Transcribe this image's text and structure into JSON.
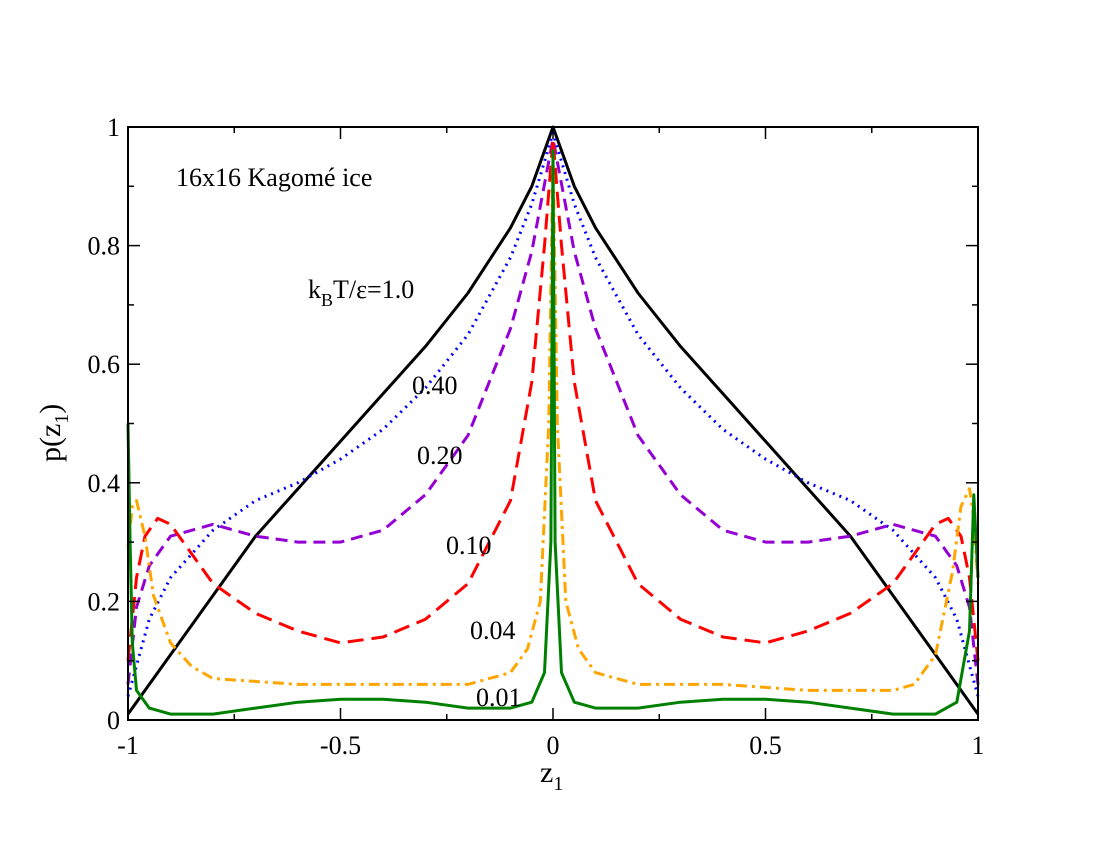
{
  "chart_data": {
    "type": "line",
    "title": "16x16 Kagomé ice",
    "xlabel": {
      "base": "z",
      "sub": "1"
    },
    "ylabel": {
      "base": "p(z",
      "sub": "1",
      "tail": ")"
    },
    "xlim": [
      -1,
      1
    ],
    "ylim": [
      0,
      1
    ],
    "xticks": [
      {
        "value": -1,
        "label": "-1"
      },
      {
        "value": -0.5,
        "label": "-0.5"
      },
      {
        "value": 0,
        "label": "0"
      },
      {
        "value": 0.5,
        "label": "0.5"
      },
      {
        "value": 1,
        "label": "1"
      }
    ],
    "yticks": [
      {
        "value": 0,
        "label": "0"
      },
      {
        "value": 0.2,
        "label": "0.2"
      },
      {
        "value": 0.4,
        "label": "0.4"
      },
      {
        "value": 0.6,
        "label": "0.6"
      },
      {
        "value": 0.8,
        "label": "0.8"
      },
      {
        "value": 1,
        "label": "1"
      }
    ],
    "grid": false,
    "series": [
      {
        "label": "k_BT/ε=1.0",
        "color": "#000000",
        "style": "solid",
        "points": [
          [
            -1.0,
            0.01
          ],
          [
            -0.9,
            0.11
          ],
          [
            -0.8,
            0.21
          ],
          [
            -0.7,
            0.31
          ],
          [
            -0.6,
            0.39
          ],
          [
            -0.5,
            0.47
          ],
          [
            -0.4,
            0.55
          ],
          [
            -0.3,
            0.63
          ],
          [
            -0.2,
            0.72
          ],
          [
            -0.1,
            0.83
          ],
          [
            -0.05,
            0.9
          ],
          [
            0.0,
            1.0
          ],
          [
            0.05,
            0.9
          ],
          [
            0.1,
            0.83
          ],
          [
            0.2,
            0.72
          ],
          [
            0.3,
            0.63
          ],
          [
            0.4,
            0.55
          ],
          [
            0.5,
            0.47
          ],
          [
            0.6,
            0.39
          ],
          [
            0.7,
            0.31
          ],
          [
            0.8,
            0.21
          ],
          [
            0.9,
            0.11
          ],
          [
            1.0,
            0.01
          ]
        ]
      },
      {
        "label": "0.40",
        "color": "#0000ff",
        "style": "dotted",
        "points": [
          [
            -1.0,
            0.04
          ],
          [
            -0.95,
            0.17
          ],
          [
            -0.9,
            0.24
          ],
          [
            -0.8,
            0.32
          ],
          [
            -0.7,
            0.37
          ],
          [
            -0.6,
            0.4
          ],
          [
            -0.5,
            0.44
          ],
          [
            -0.4,
            0.49
          ],
          [
            -0.3,
            0.56
          ],
          [
            -0.2,
            0.65
          ],
          [
            -0.1,
            0.78
          ],
          [
            -0.05,
            0.87
          ],
          [
            0.0,
            0.99
          ],
          [
            0.05,
            0.87
          ],
          [
            0.1,
            0.78
          ],
          [
            0.2,
            0.65
          ],
          [
            0.3,
            0.56
          ],
          [
            0.4,
            0.49
          ],
          [
            0.5,
            0.44
          ],
          [
            0.6,
            0.4
          ],
          [
            0.7,
            0.37
          ],
          [
            0.8,
            0.32
          ],
          [
            0.9,
            0.24
          ],
          [
            0.95,
            0.17
          ],
          [
            1.0,
            0.04
          ]
        ]
      },
      {
        "label": "0.20",
        "color": "#9400d3",
        "style": "dashed",
        "points": [
          [
            -1.0,
            0.06
          ],
          [
            -0.98,
            0.19
          ],
          [
            -0.95,
            0.26
          ],
          [
            -0.9,
            0.31
          ],
          [
            -0.8,
            0.33
          ],
          [
            -0.7,
            0.31
          ],
          [
            -0.6,
            0.3
          ],
          [
            -0.5,
            0.3
          ],
          [
            -0.4,
            0.32
          ],
          [
            -0.3,
            0.38
          ],
          [
            -0.2,
            0.48
          ],
          [
            -0.1,
            0.66
          ],
          [
            -0.05,
            0.79
          ],
          [
            0.0,
            0.98
          ],
          [
            0.05,
            0.79
          ],
          [
            0.1,
            0.66
          ],
          [
            0.2,
            0.48
          ],
          [
            0.3,
            0.38
          ],
          [
            0.4,
            0.32
          ],
          [
            0.5,
            0.3
          ],
          [
            0.6,
            0.3
          ],
          [
            0.7,
            0.31
          ],
          [
            0.8,
            0.33
          ],
          [
            0.9,
            0.31
          ],
          [
            0.95,
            0.26
          ],
          [
            0.98,
            0.19
          ],
          [
            1.0,
            0.06
          ]
        ]
      },
      {
        "label": "0.10",
        "color": "#ff0000",
        "style": "longdash",
        "points": [
          [
            -1.0,
            0.1
          ],
          [
            -0.98,
            0.24
          ],
          [
            -0.96,
            0.31
          ],
          [
            -0.93,
            0.34
          ],
          [
            -0.9,
            0.33
          ],
          [
            -0.85,
            0.28
          ],
          [
            -0.8,
            0.23
          ],
          [
            -0.7,
            0.18
          ],
          [
            -0.6,
            0.15
          ],
          [
            -0.5,
            0.13
          ],
          [
            -0.4,
            0.14
          ],
          [
            -0.3,
            0.17
          ],
          [
            -0.2,
            0.23
          ],
          [
            -0.1,
            0.37
          ],
          [
            -0.05,
            0.57
          ],
          [
            -0.02,
            0.8
          ],
          [
            0.0,
            0.98
          ],
          [
            0.02,
            0.8
          ],
          [
            0.05,
            0.57
          ],
          [
            0.1,
            0.37
          ],
          [
            0.2,
            0.23
          ],
          [
            0.3,
            0.17
          ],
          [
            0.4,
            0.14
          ],
          [
            0.5,
            0.13
          ],
          [
            0.6,
            0.15
          ],
          [
            0.7,
            0.18
          ],
          [
            0.8,
            0.23
          ],
          [
            0.85,
            0.28
          ],
          [
            0.9,
            0.33
          ],
          [
            0.93,
            0.34
          ],
          [
            0.96,
            0.31
          ],
          [
            0.98,
            0.24
          ],
          [
            1.0,
            0.1
          ]
        ]
      },
      {
        "label": "0.04",
        "color": "#ffa500",
        "style": "dashdot",
        "points": [
          [
            -1.0,
            0.29
          ],
          [
            -0.99,
            0.36
          ],
          [
            -0.98,
            0.37
          ],
          [
            -0.96,
            0.31
          ],
          [
            -0.94,
            0.21
          ],
          [
            -0.9,
            0.13
          ],
          [
            -0.85,
            0.09
          ],
          [
            -0.8,
            0.07
          ],
          [
            -0.6,
            0.06
          ],
          [
            -0.4,
            0.06
          ],
          [
            -0.2,
            0.06
          ],
          [
            -0.1,
            0.08
          ],
          [
            -0.06,
            0.12
          ],
          [
            -0.03,
            0.2
          ],
          [
            -0.01,
            0.5
          ],
          [
            0.0,
            0.96
          ],
          [
            0.01,
            0.5
          ],
          [
            0.03,
            0.2
          ],
          [
            0.06,
            0.12
          ],
          [
            0.1,
            0.08
          ],
          [
            0.2,
            0.06
          ],
          [
            0.4,
            0.06
          ],
          [
            0.6,
            0.05
          ],
          [
            0.7,
            0.05
          ],
          [
            0.8,
            0.05
          ],
          [
            0.85,
            0.06
          ],
          [
            0.9,
            0.11
          ],
          [
            0.94,
            0.25
          ],
          [
            0.96,
            0.36
          ],
          [
            0.98,
            0.39
          ],
          [
            0.99,
            0.34
          ],
          [
            1.0,
            0.23
          ]
        ]
      },
      {
        "label": "0.01",
        "color": "#008000",
        "style": "solid",
        "points": [
          [
            -1.0,
            0.5
          ],
          [
            -0.995,
            0.3
          ],
          [
            -0.99,
            0.13
          ],
          [
            -0.98,
            0.05
          ],
          [
            -0.95,
            0.02
          ],
          [
            -0.9,
            0.01
          ],
          [
            -0.8,
            0.01
          ],
          [
            -0.7,
            0.02
          ],
          [
            -0.6,
            0.03
          ],
          [
            -0.5,
            0.035
          ],
          [
            -0.4,
            0.035
          ],
          [
            -0.3,
            0.03
          ],
          [
            -0.2,
            0.02
          ],
          [
            -0.1,
            0.02
          ],
          [
            -0.05,
            0.03
          ],
          [
            -0.02,
            0.08
          ],
          [
            -0.005,
            0.3
          ],
          [
            0.0,
            0.96
          ],
          [
            0.005,
            0.3
          ],
          [
            0.02,
            0.08
          ],
          [
            0.05,
            0.03
          ],
          [
            0.1,
            0.02
          ],
          [
            0.2,
            0.02
          ],
          [
            0.3,
            0.03
          ],
          [
            0.4,
            0.035
          ],
          [
            0.5,
            0.035
          ],
          [
            0.6,
            0.03
          ],
          [
            0.7,
            0.02
          ],
          [
            0.8,
            0.01
          ],
          [
            0.9,
            0.01
          ],
          [
            0.95,
            0.03
          ],
          [
            0.98,
            0.15
          ],
          [
            0.99,
            0.38
          ],
          [
            1.0,
            0.24
          ]
        ]
      }
    ]
  },
  "annotations": [
    {
      "id": "t10",
      "kind": "kbt",
      "pre": "k",
      "sub": "B",
      "post": "T/ε=1.0"
    },
    {
      "id": "t040",
      "text": "0.40"
    },
    {
      "id": "t020",
      "text": "0.20"
    },
    {
      "id": "t010",
      "text": "0.10"
    },
    {
      "id": "t004",
      "text": "0.04"
    },
    {
      "id": "t001",
      "text": "0.01"
    }
  ]
}
